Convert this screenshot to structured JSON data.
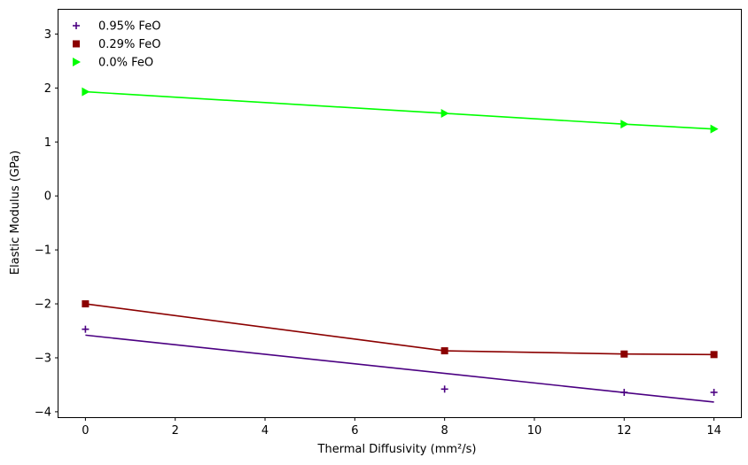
{
  "chart_data": {
    "type": "scatter",
    "title": "",
    "xlabel": "Thermal Diffusivity (mm²/s)",
    "ylabel": "Elastic Modulus (GPa)",
    "xlim": [
      -0.6,
      14.6
    ],
    "ylim": [
      -4.1,
      3.45
    ],
    "x_ticks": [
      0,
      2,
      4,
      6,
      8,
      10,
      12,
      14
    ],
    "y_ticks": [
      -4,
      -3,
      -2,
      -1,
      0,
      1,
      2,
      3
    ],
    "x_tick_labels": [
      "0",
      "2",
      "4",
      "6",
      "8",
      "10",
      "12",
      "14"
    ],
    "y_tick_labels": [
      "−4",
      "−3",
      "−2",
      "−1",
      "0",
      "1",
      "2",
      "3"
    ],
    "grid": false,
    "legend_position": "top-left",
    "series": [
      {
        "name": "0.95% FeO",
        "marker": "plus",
        "color": "#4b0082",
        "points": [
          [
            0,
            -2.47
          ],
          [
            8,
            -3.58
          ],
          [
            12,
            -3.64
          ],
          [
            14,
            -3.64
          ]
        ],
        "fit": [
          [
            0,
            -2.58
          ],
          [
            14,
            -3.82
          ]
        ]
      },
      {
        "name": "0.29% FeO",
        "marker": "square",
        "color": "#8b0000",
        "points": [
          [
            0,
            -2.0
          ],
          [
            8,
            -2.87
          ],
          [
            12,
            -2.93
          ],
          [
            14,
            -2.94
          ]
        ],
        "fit": [
          [
            0,
            -2.0
          ],
          [
            8,
            -2.87
          ],
          [
            12,
            -2.93
          ],
          [
            14,
            -2.94
          ]
        ]
      },
      {
        "name": "0.0% FeO",
        "marker": "triangle-right",
        "color": "#00ff00",
        "points": [
          [
            0,
            1.93
          ],
          [
            8,
            1.53
          ],
          [
            12,
            1.33
          ],
          [
            14,
            1.24
          ]
        ],
        "fit": [
          [
            0,
            1.93
          ],
          [
            8,
            1.53
          ],
          [
            12,
            1.33
          ],
          [
            14,
            1.24
          ]
        ]
      }
    ]
  }
}
